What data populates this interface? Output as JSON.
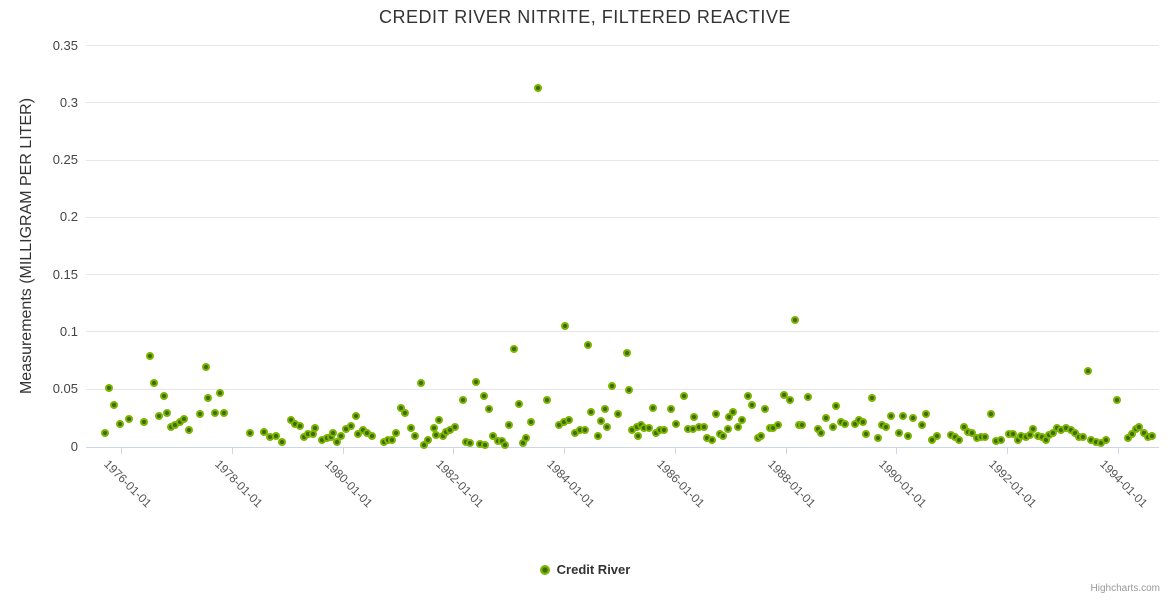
{
  "chart": {
    "title": "CREDIT RIVER NITRITE, FILTERED REACTIVE",
    "credit": "Highcharts.com"
  },
  "legend": {
    "items": [
      {
        "label": "Credit River",
        "marker_color": "#7cb501"
      }
    ]
  },
  "colors": {
    "background": "#ffffff",
    "title": "#333333",
    "grid_line": "#e6e6e6",
    "axis_line": "#ccd6eb",
    "y_label": "#444444",
    "x_label": "#555555",
    "point_outer": "#7cb501",
    "point_core": "#406c00",
    "credit": "#999999"
  },
  "chart_data": {
    "type": "scatter",
    "title": "CREDIT RIVER NITRITE, FILTERED REACTIVE",
    "xlabel": "",
    "ylabel": "Measurements (MILLIGRAM PER LITER)",
    "grid": true,
    "legend_position": "bottom-center",
    "x_axis": {
      "kind": "datetime-years",
      "min": 1975.35,
      "max": 1994.74,
      "ticks": [
        {
          "year": 1976,
          "label": "1976-01-01"
        },
        {
          "year": 1978,
          "label": "1978-01-01"
        },
        {
          "year": 1980,
          "label": "1980-01-01"
        },
        {
          "year": 1982,
          "label": "1982-01-01"
        },
        {
          "year": 1984,
          "label": "1984-01-01"
        },
        {
          "year": 1986,
          "label": "1986-01-01"
        },
        {
          "year": 1988,
          "label": "1988-01-01"
        },
        {
          "year": 1990,
          "label": "1990-01-01"
        },
        {
          "year": 1992,
          "label": "1992-01-01"
        },
        {
          "year": 1994,
          "label": "1994-01-01"
        }
      ]
    },
    "y_axis": {
      "min": 0,
      "max": 0.35,
      "ticks": [
        {
          "value": 0,
          "label": "0"
        },
        {
          "value": 0.05,
          "label": "0.05"
        },
        {
          "value": 0.1,
          "label": "0.1"
        },
        {
          "value": 0.15,
          "label": "0.15"
        },
        {
          "value": 0.2,
          "label": "0.2"
        },
        {
          "value": 0.25,
          "label": "0.25"
        },
        {
          "value": 0.3,
          "label": "0.3"
        },
        {
          "value": 0.35,
          "label": "0.35"
        }
      ]
    },
    "series": [
      {
        "name": "Credit River",
        "color": "#7cb501",
        "points": [
          [
            1975.7,
            0.012
          ],
          [
            1975.76,
            0.051
          ],
          [
            1975.86,
            0.036
          ],
          [
            1975.97,
            0.02
          ],
          [
            1976.12,
            0.024
          ],
          [
            1976.4,
            0.021
          ],
          [
            1976.5,
            0.079
          ],
          [
            1976.58,
            0.055
          ],
          [
            1976.67,
            0.027
          ],
          [
            1976.76,
            0.044
          ],
          [
            1976.82,
            0.029
          ],
          [
            1976.88,
            0.017
          ],
          [
            1976.96,
            0.019
          ],
          [
            1977.05,
            0.021
          ],
          [
            1977.12,
            0.024
          ],
          [
            1977.21,
            0.014
          ],
          [
            1977.41,
            0.028
          ],
          [
            1977.52,
            0.069
          ],
          [
            1977.55,
            0.042
          ],
          [
            1977.68,
            0.029
          ],
          [
            1977.77,
            0.047
          ],
          [
            1977.85,
            0.029
          ],
          [
            1978.32,
            0.012
          ],
          [
            1978.57,
            0.013
          ],
          [
            1978.67,
            0.008
          ],
          [
            1978.79,
            0.009
          ],
          [
            1978.89,
            0.004
          ],
          [
            1979.06,
            0.023
          ],
          [
            1979.13,
            0.02
          ],
          [
            1979.21,
            0.018
          ],
          [
            1979.29,
            0.008
          ],
          [
            1979.37,
            0.011
          ],
          [
            1979.45,
            0.011
          ],
          [
            1979.49,
            0.016
          ],
          [
            1979.62,
            0.006
          ],
          [
            1979.7,
            0.007
          ],
          [
            1979.78,
            0.008
          ],
          [
            1979.82,
            0.012
          ],
          [
            1979.88,
            0.004
          ],
          [
            1979.96,
            0.009
          ],
          [
            1980.05,
            0.015
          ],
          [
            1980.14,
            0.018
          ],
          [
            1980.23,
            0.027
          ],
          [
            1980.27,
            0.011
          ],
          [
            1980.35,
            0.014
          ],
          [
            1980.43,
            0.012
          ],
          [
            1980.52,
            0.009
          ],
          [
            1980.73,
            0.004
          ],
          [
            1980.8,
            0.006
          ],
          [
            1980.88,
            0.006
          ],
          [
            1980.95,
            0.012
          ],
          [
            1981.04,
            0.034
          ],
          [
            1981.12,
            0.029
          ],
          [
            1981.22,
            0.016
          ],
          [
            1981.29,
            0.009
          ],
          [
            1981.4,
            0.055
          ],
          [
            1981.45,
            0.001
          ],
          [
            1981.53,
            0.006
          ],
          [
            1981.63,
            0.016
          ],
          [
            1981.68,
            0.01
          ],
          [
            1981.73,
            0.023
          ],
          [
            1981.8,
            0.009
          ],
          [
            1981.85,
            0.013
          ],
          [
            1981.93,
            0.014
          ],
          [
            1982.02,
            0.017
          ],
          [
            1982.17,
            0.041
          ],
          [
            1982.22,
            0.004
          ],
          [
            1982.29,
            0.003
          ],
          [
            1982.39,
            0.056
          ],
          [
            1982.47,
            0.002
          ],
          [
            1982.55,
            0.044
          ],
          [
            1982.56,
            0.001
          ],
          [
            1982.64,
            0.033
          ],
          [
            1982.7,
            0.009
          ],
          [
            1982.79,
            0.005
          ],
          [
            1982.86,
            0.005
          ],
          [
            1982.92,
            0.001
          ],
          [
            1983.0,
            0.019
          ],
          [
            1983.09,
            0.085
          ],
          [
            1983.18,
            0.037
          ],
          [
            1983.25,
            0.003
          ],
          [
            1983.31,
            0.007
          ],
          [
            1983.39,
            0.021
          ],
          [
            1983.51,
            0.313
          ],
          [
            1983.68,
            0.041
          ],
          [
            1983.9,
            0.019
          ],
          [
            1983.98,
            0.021
          ],
          [
            1984.01,
            0.105
          ],
          [
            1984.08,
            0.023
          ],
          [
            1984.19,
            0.012
          ],
          [
            1984.28,
            0.014
          ],
          [
            1984.36,
            0.014
          ],
          [
            1984.43,
            0.089
          ],
          [
            1984.48,
            0.03
          ],
          [
            1984.6,
            0.009
          ],
          [
            1984.65,
            0.022
          ],
          [
            1984.72,
            0.033
          ],
          [
            1984.76,
            0.017
          ],
          [
            1984.86,
            0.053
          ],
          [
            1984.96,
            0.028
          ],
          [
            1985.12,
            0.082
          ],
          [
            1985.16,
            0.049
          ],
          [
            1985.22,
            0.014
          ],
          [
            1985.3,
            0.017
          ],
          [
            1985.33,
            0.009
          ],
          [
            1985.38,
            0.019
          ],
          [
            1985.44,
            0.016
          ],
          [
            1985.52,
            0.016
          ],
          [
            1985.6,
            0.034
          ],
          [
            1985.65,
            0.012
          ],
          [
            1985.72,
            0.014
          ],
          [
            1985.8,
            0.014
          ],
          [
            1985.92,
            0.033
          ],
          [
            1986.01,
            0.02
          ],
          [
            1986.16,
            0.044
          ],
          [
            1986.23,
            0.015
          ],
          [
            1986.31,
            0.015
          ],
          [
            1986.34,
            0.026
          ],
          [
            1986.43,
            0.017
          ],
          [
            1986.51,
            0.017
          ],
          [
            1986.57,
            0.007
          ],
          [
            1986.66,
            0.006
          ],
          [
            1986.73,
            0.028
          ],
          [
            1986.81,
            0.011
          ],
          [
            1986.86,
            0.009
          ],
          [
            1986.95,
            0.015
          ],
          [
            1986.97,
            0.026
          ],
          [
            1987.05,
            0.03
          ],
          [
            1987.13,
            0.017
          ],
          [
            1987.21,
            0.023
          ],
          [
            1987.31,
            0.044
          ],
          [
            1987.39,
            0.036
          ],
          [
            1987.49,
            0.007
          ],
          [
            1987.55,
            0.009
          ],
          [
            1987.62,
            0.033
          ],
          [
            1987.71,
            0.016
          ],
          [
            1987.77,
            0.016
          ],
          [
            1987.85,
            0.019
          ],
          [
            1987.97,
            0.045
          ],
          [
            1988.07,
            0.041
          ],
          [
            1988.16,
            0.11
          ],
          [
            1988.23,
            0.019
          ],
          [
            1988.29,
            0.019
          ],
          [
            1988.39,
            0.043
          ],
          [
            1988.57,
            0.015
          ],
          [
            1988.64,
            0.012
          ],
          [
            1988.73,
            0.025
          ],
          [
            1988.84,
            0.017
          ],
          [
            1988.9,
            0.035
          ],
          [
            1988.99,
            0.021
          ],
          [
            1989.07,
            0.02
          ],
          [
            1989.25,
            0.02
          ],
          [
            1989.32,
            0.023
          ],
          [
            1989.4,
            0.021
          ],
          [
            1989.44,
            0.011
          ],
          [
            1989.55,
            0.042
          ],
          [
            1989.66,
            0.007
          ],
          [
            1989.73,
            0.019
          ],
          [
            1989.8,
            0.017
          ],
          [
            1989.9,
            0.027
          ],
          [
            1990.04,
            0.012
          ],
          [
            1990.12,
            0.027
          ],
          [
            1990.2,
            0.009
          ],
          [
            1990.3,
            0.025
          ],
          [
            1990.45,
            0.019
          ],
          [
            1990.53,
            0.028
          ],
          [
            1990.64,
            0.006
          ],
          [
            1990.72,
            0.009
          ],
          [
            1990.98,
            0.01
          ],
          [
            1991.05,
            0.008
          ],
          [
            1991.12,
            0.006
          ],
          [
            1991.22,
            0.017
          ],
          [
            1991.29,
            0.013
          ],
          [
            1991.36,
            0.012
          ],
          [
            1991.46,
            0.007
          ],
          [
            1991.53,
            0.008
          ],
          [
            1991.6,
            0.008
          ],
          [
            1991.71,
            0.028
          ],
          [
            1991.8,
            0.005
          ],
          [
            1991.88,
            0.006
          ],
          [
            1992.03,
            0.011
          ],
          [
            1992.11,
            0.011
          ],
          [
            1992.19,
            0.006
          ],
          [
            1992.25,
            0.009
          ],
          [
            1992.33,
            0.008
          ],
          [
            1992.41,
            0.01
          ],
          [
            1992.47,
            0.015
          ],
          [
            1992.55,
            0.009
          ],
          [
            1992.62,
            0.008
          ],
          [
            1992.69,
            0.006
          ],
          [
            1992.75,
            0.01
          ],
          [
            1992.83,
            0.012
          ],
          [
            1992.89,
            0.016
          ],
          [
            1992.97,
            0.014
          ],
          [
            1993.06,
            0.016
          ],
          [
            1993.15,
            0.014
          ],
          [
            1993.22,
            0.012
          ],
          [
            1993.29,
            0.008
          ],
          [
            1993.37,
            0.008
          ],
          [
            1993.45,
            0.066
          ],
          [
            1993.52,
            0.006
          ],
          [
            1993.61,
            0.004
          ],
          [
            1993.69,
            0.003
          ],
          [
            1993.78,
            0.006
          ],
          [
            1993.98,
            0.041
          ],
          [
            1994.18,
            0.007
          ],
          [
            1994.25,
            0.011
          ],
          [
            1994.32,
            0.015
          ],
          [
            1994.38,
            0.017
          ],
          [
            1994.46,
            0.012
          ],
          [
            1994.54,
            0.008
          ],
          [
            1994.61,
            0.009
          ]
        ]
      }
    ]
  }
}
